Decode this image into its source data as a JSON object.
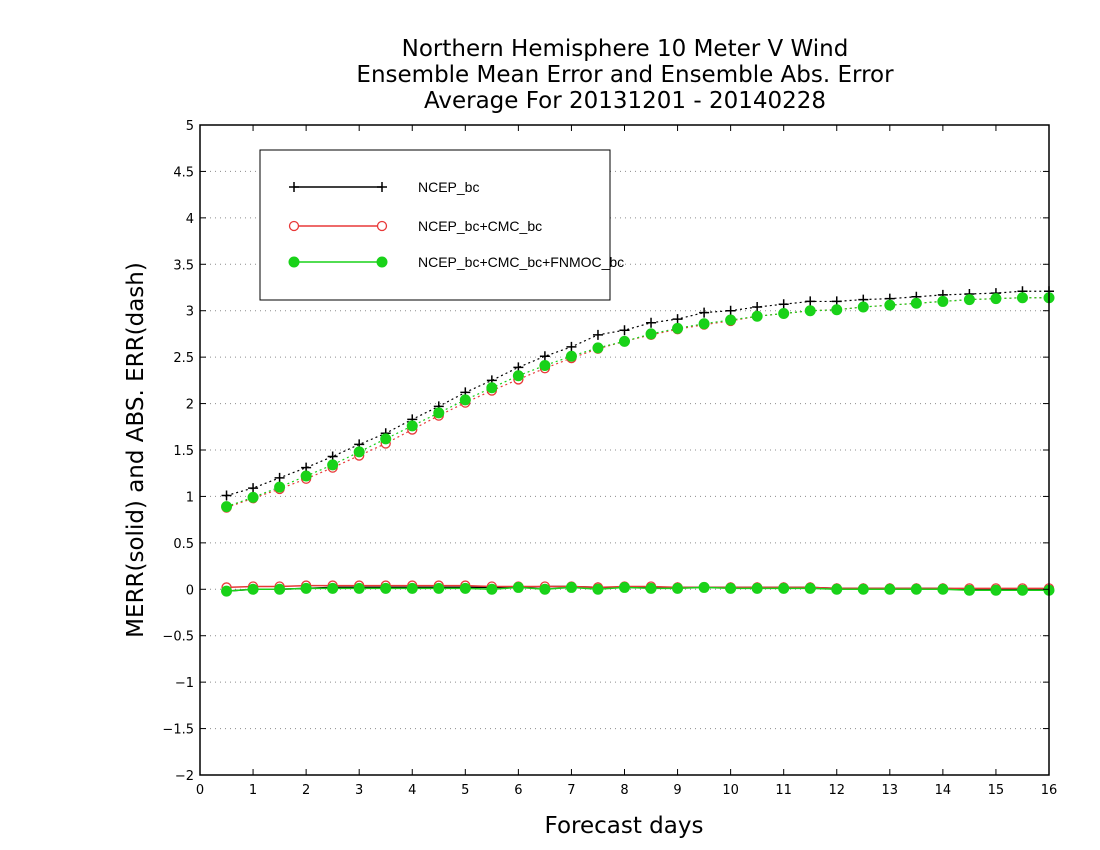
{
  "chart_data": {
    "type": "line",
    "title": [
      "Northern Hemisphere 10 Meter V Wind",
      "Ensemble Mean Error and Ensemble Abs. Error",
      "Average For 20131201 - 20140228"
    ],
    "xlabel": "Forecast days",
    "ylabel": "MERR(solid) and ABS. ERR(dash)",
    "xlim": [
      0,
      16
    ],
    "ylim": [
      -2,
      5
    ],
    "xticks": [
      "0",
      "1",
      "2",
      "3",
      "4",
      "5",
      "6",
      "7",
      "8",
      "9",
      "10",
      "11",
      "12",
      "13",
      "14",
      "15",
      "16"
    ],
    "yticks": [
      "−2",
      "−1.5",
      "−1",
      "−0.5",
      "0",
      "0.5",
      "1",
      "1.5",
      "2",
      "2.5",
      "3",
      "3.5",
      "4",
      "4.5",
      "5"
    ],
    "ytick_values": [
      -2,
      -1.5,
      -1,
      -0.5,
      0,
      0.5,
      1,
      1.5,
      2,
      2.5,
      3,
      3.5,
      4,
      4.5,
      5
    ],
    "grid": "horizontal-dotted",
    "legend_position": "top-left",
    "x": [
      0.5,
      1,
      1.5,
      2,
      2.5,
      3,
      3.5,
      4,
      4.5,
      5,
      5.5,
      6,
      6.5,
      7,
      7.5,
      8,
      8.5,
      9,
      9.5,
      10,
      10.5,
      11,
      11.5,
      12,
      12.5,
      13,
      13.5,
      14,
      14.5,
      15,
      15.5,
      16
    ],
    "series": [
      {
        "name": "NCEP_bc",
        "color": "#000000",
        "marker": "plus",
        "abs_err": [
          1.01,
          1.09,
          1.2,
          1.31,
          1.43,
          1.56,
          1.68,
          1.83,
          1.97,
          2.12,
          2.25,
          2.39,
          2.51,
          2.61,
          2.74,
          2.79,
          2.87,
          2.91,
          2.98,
          3.0,
          3.04,
          3.07,
          3.1,
          3.1,
          3.12,
          3.13,
          3.15,
          3.17,
          3.18,
          3.19,
          3.21,
          3.21
        ],
        "merr": [
          -0.02,
          0.0,
          0.0,
          0.01,
          0.02,
          0.02,
          0.02,
          0.02,
          0.02,
          0.02,
          0.02,
          0.02,
          0.03,
          0.03,
          0.02,
          0.02,
          0.02,
          0.02,
          0.02,
          0.02,
          0.02,
          0.02,
          0.02,
          0.01,
          0.01,
          0.01,
          0.01,
          0.01,
          0.0,
          0.0,
          0.0,
          0.0
        ]
      },
      {
        "name": "NCEP_bc+CMC_bc",
        "color": "#e83838",
        "marker": "open-circle",
        "abs_err": [
          0.88,
          0.98,
          1.08,
          1.19,
          1.31,
          1.44,
          1.57,
          1.72,
          1.87,
          2.01,
          2.14,
          2.26,
          2.38,
          2.49,
          2.59,
          2.67,
          2.74,
          2.8,
          2.85,
          2.89,
          2.94,
          2.97,
          3.0,
          3.01,
          3.04,
          3.06,
          3.08,
          3.1,
          3.12,
          3.13,
          3.14,
          3.14
        ],
        "merr": [
          0.02,
          0.03,
          0.03,
          0.04,
          0.04,
          0.04,
          0.04,
          0.04,
          0.04,
          0.04,
          0.03,
          0.03,
          0.03,
          0.03,
          0.02,
          0.03,
          0.03,
          0.02,
          0.02,
          0.02,
          0.02,
          0.02,
          0.02,
          0.01,
          0.01,
          0.01,
          0.01,
          0.01,
          0.01,
          0.01,
          0.01,
          0.01
        ]
      },
      {
        "name": "NCEP_bc+CMC_bc+FNMOC_bc",
        "color": "#19d219",
        "marker": "filled-circle",
        "abs_err": [
          0.89,
          0.99,
          1.1,
          1.22,
          1.34,
          1.48,
          1.62,
          1.76,
          1.9,
          2.04,
          2.17,
          2.3,
          2.41,
          2.51,
          2.6,
          2.67,
          2.75,
          2.81,
          2.86,
          2.9,
          2.94,
          2.97,
          3.0,
          3.01,
          3.04,
          3.06,
          3.08,
          3.1,
          3.12,
          3.13,
          3.14,
          3.14
        ],
        "merr": [
          -0.02,
          0.0,
          0.0,
          0.01,
          0.01,
          0.01,
          0.01,
          0.01,
          0.01,
          0.01,
          0.0,
          0.02,
          0.0,
          0.02,
          0.0,
          0.02,
          0.01,
          0.01,
          0.02,
          0.01,
          0.01,
          0.01,
          0.01,
          0.0,
          0.0,
          0.0,
          0.0,
          0.0,
          -0.01,
          -0.01,
          -0.01,
          -0.01
        ]
      }
    ]
  }
}
